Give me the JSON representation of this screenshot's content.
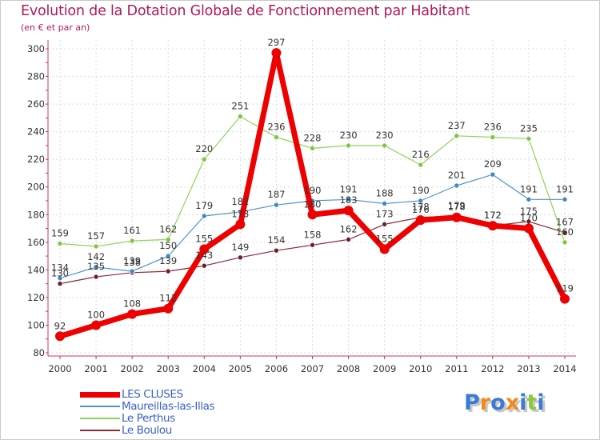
{
  "title": "Evolution de la Dotation Globale de Fonctionnement par Habitant",
  "subtitle": "(en € et par an)",
  "logo": {
    "text": "Proxiti",
    "letters": [
      "P",
      "r",
      "o",
      "x",
      "i",
      "t",
      "i"
    ],
    "colors": [
      "#3a7bd5",
      "#f08a1c",
      "#3a7bd5",
      "#f08a1c",
      "#3a7bd5",
      "#8dc63f",
      "#3a7bd5"
    ]
  },
  "chart_data": {
    "type": "line",
    "title": "Evolution de la Dotation Globale de Fonctionnement par Habitant",
    "subtitle": "(en € et par an)",
    "xlabel": "",
    "ylabel": "",
    "x": [
      "2000",
      "2001",
      "2002",
      "2003",
      "2004",
      "2005",
      "2006",
      "2007",
      "2008",
      "2009",
      "2010",
      "2011",
      "2012",
      "2013",
      "2014"
    ],
    "ylim": [
      80,
      300
    ],
    "yticks": [
      80,
      100,
      120,
      140,
      160,
      180,
      200,
      220,
      240,
      260,
      280,
      300
    ],
    "grid": true,
    "series": [
      {
        "name": "Le Boulou",
        "color": "#8a2a35",
        "marker": "#6e1f2a",
        "width": 1.2,
        "values": [
          130,
          135,
          138,
          139,
          143,
          149,
          154,
          158,
          162,
          173,
          178,
          179,
          172,
          175,
          167
        ]
      },
      {
        "name": "Le Perthus",
        "color": "#8dd456",
        "marker": "#7ec640",
        "width": 1.2,
        "values": [
          159,
          157,
          161,
          162,
          220,
          251,
          236,
          228,
          230,
          230,
          216,
          237,
          236,
          235,
          160
        ]
      },
      {
        "name": "Maureillas-las-Illas",
        "color": "#4f93c8",
        "marker": "#3f86c2",
        "width": 1.2,
        "values": [
          134,
          142,
          139,
          150,
          179,
          182,
          187,
          190,
          191,
          188,
          190,
          201,
          209,
          191,
          191
        ]
      },
      {
        "name": "LES CLUSES",
        "color": "#ee0000",
        "marker": "#ee0000",
        "width": 7,
        "values": [
          92,
          100,
          108,
          112,
          155,
          173,
          297,
          180,
          183,
          155,
          176,
          178,
          172,
          170,
          119
        ]
      }
    ],
    "legend": [
      "LES CLUSES",
      "Maureillas-las-Illas",
      "Le Perthus",
      "Le Boulou"
    ]
  }
}
